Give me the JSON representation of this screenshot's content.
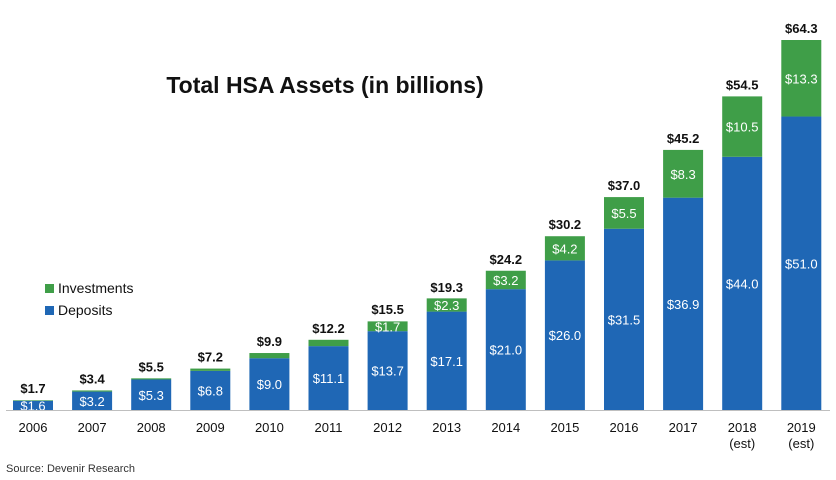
{
  "chart_data": {
    "type": "bar",
    "stacked": true,
    "title": "Total HSA Assets (in billions)",
    "xlabel": "",
    "ylabel": "",
    "ylim": [
      0,
      67
    ],
    "grid": false,
    "legend_position": "left",
    "categories": [
      "2006",
      "2007",
      "2008",
      "2009",
      "2010",
      "2011",
      "2012",
      "2013",
      "2014",
      "2015",
      "2016",
      "2017",
      "2018\n(est)",
      "2019\n(est)"
    ],
    "series": [
      {
        "name": "Deposits",
        "color": "#1f67b5",
        "values": [
          1.6,
          3.2,
          5.3,
          6.8,
          9.0,
          11.1,
          13.7,
          17.1,
          21.0,
          26.0,
          31.5,
          36.9,
          44.0,
          51.0
        ],
        "labels": [
          "$1.6",
          "$3.2",
          "$5.3",
          "$6.8",
          "$9.0",
          "$11.1",
          "$13.7",
          "$17.1",
          "$21.0",
          "$26.0",
          "$31.5",
          "$36.9",
          "$44.0",
          "$51.0"
        ]
      },
      {
        "name": "Investments",
        "color": "#3f9e48",
        "values": [
          0.1,
          0.2,
          0.2,
          0.4,
          0.9,
          1.1,
          1.7,
          2.3,
          3.2,
          4.2,
          5.5,
          8.3,
          10.5,
          13.3
        ],
        "labels": [
          "",
          "",
          "",
          "",
          "",
          "",
          "$1.7",
          "$2.3",
          "$3.2",
          "$4.2",
          "$5.5",
          "$8.3",
          "$10.5",
          "$13.3"
        ]
      }
    ],
    "totals": [
      1.7,
      3.4,
      5.5,
      7.2,
      9.9,
      12.2,
      15.5,
      19.3,
      24.2,
      30.2,
      37.0,
      45.2,
      54.5,
      64.3
    ],
    "total_labels": [
      "$1.7",
      "$3.4",
      "$5.5",
      "$7.2",
      "$9.9",
      "$12.2",
      "$15.5",
      "$19.3",
      "$24.2",
      "$30.2",
      "$37.0",
      "$45.2",
      "$54.5",
      "$64.3"
    ],
    "legend": [
      "Investments",
      "Deposits"
    ],
    "source": "Source: Devenir Research"
  }
}
